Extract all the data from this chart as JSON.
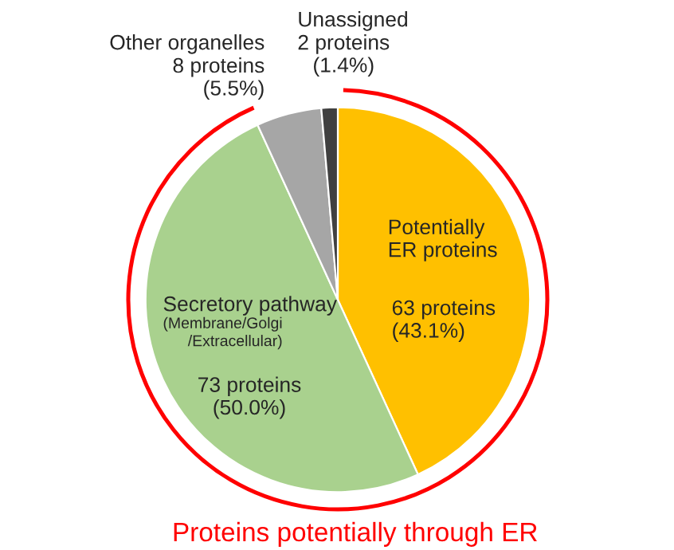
{
  "chart_data": {
    "type": "pie",
    "categories": [
      "Potentially\nER proteins",
      "Secretory pathway\n(Membrane/Golgi\n/Extracellular)",
      "Other organelles",
      "Unassigned"
    ],
    "values": [
      63,
      73,
      8,
      2
    ],
    "value_labels": [
      "63 proteins\n(43.1%)",
      "73 proteins\n(50.0%)",
      "8 proteins\n(5.5%)",
      "2 proteins\n(1.4%)"
    ],
    "colors": [
      "#ffc000",
      "#a9d18e",
      "#a6a6a6",
      "#404040"
    ],
    "annotations": [
      "Proteins potentially through ER"
    ]
  }
}
